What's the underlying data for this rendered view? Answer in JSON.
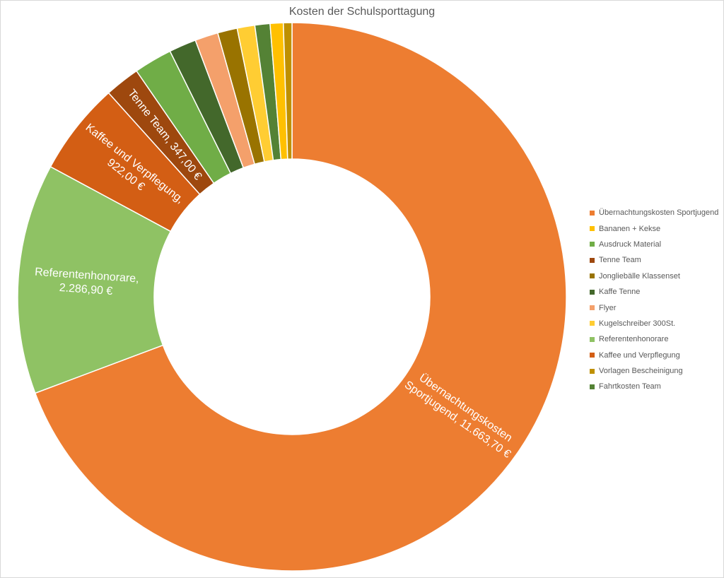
{
  "chart_data": {
    "type": "pie",
    "donut": true,
    "title": "Kosten der Schulsporttagung",
    "legend_position": "right",
    "series": [
      {
        "name": "Übernachtungskosten Sportjugend",
        "value": 11663.7,
        "color": "#ED7D31",
        "label_lines": [
          "Übernachtungskosten",
          "Sportjugend, 11.663,70 €"
        ]
      },
      {
        "name": "Referentenhonorare",
        "value": 2286.9,
        "color": "#8FC264",
        "label_lines": [
          "Referentenhonorare,",
          "2.286,90 €"
        ]
      },
      {
        "name": "Kaffee und Verpflegung",
        "value": 922.0,
        "color": "#D35E14",
        "label_lines": [
          "Kaffee und Verpflegung,",
          "922,00 €"
        ]
      },
      {
        "name": "Tenne Team",
        "value": 347.0,
        "color": "#9E480E",
        "label_lines": [
          "Tenne Team, 347,00 €"
        ]
      },
      {
        "name": "Ausdruck Material",
        "value": 380,
        "color": "#70AD47",
        "label_lines": []
      },
      {
        "name": "Kaffe Tenne",
        "value": 270,
        "color": "#43682B",
        "label_lines": []
      },
      {
        "name": "Flyer",
        "value": 230,
        "color": "#F4A06B",
        "label_lines": []
      },
      {
        "name": "Jongliebälle Klassenset",
        "value": 195,
        "color": "#997300",
        "label_lines": []
      },
      {
        "name": "Kugelschreiber 300St.",
        "value": 175,
        "color": "#FFCD33",
        "label_lines": []
      },
      {
        "name": "Fahrtkosten Team",
        "value": 150,
        "color": "#548235",
        "label_lines": []
      },
      {
        "name": "Bananen + Kekse",
        "value": 130,
        "color": "#FFC000",
        "label_lines": []
      },
      {
        "name": "Vorlagen Bescheinigung",
        "value": 85,
        "color": "#BF9000",
        "label_lines": []
      }
    ]
  },
  "legend": {
    "items": [
      {
        "label": "Übernachtungskosten Sportjugend",
        "color": "#ED7D31"
      },
      {
        "label": "Bananen + Kekse",
        "color": "#FFC000"
      },
      {
        "label": "Ausdruck Material",
        "color": "#70AD47"
      },
      {
        "label": "Tenne Team",
        "color": "#9E480E"
      },
      {
        "label": "Jongliebälle Klassenset",
        "color": "#997300"
      },
      {
        "label": "Kaffe Tenne",
        "color": "#43682B"
      },
      {
        "label": "Flyer",
        "color": "#F4A06B"
      },
      {
        "label": "Kugelschreiber 300St.",
        "color": "#FFCD33"
      },
      {
        "label": "Referentenhonorare",
        "color": "#8FC264"
      },
      {
        "label": "Kaffee und Verpflegung",
        "color": "#D35E14"
      },
      {
        "label": "Vorlagen Bescheinigung",
        "color": "#BF9000"
      },
      {
        "label": "Fahrtkosten Team",
        "color": "#548235"
      }
    ]
  }
}
